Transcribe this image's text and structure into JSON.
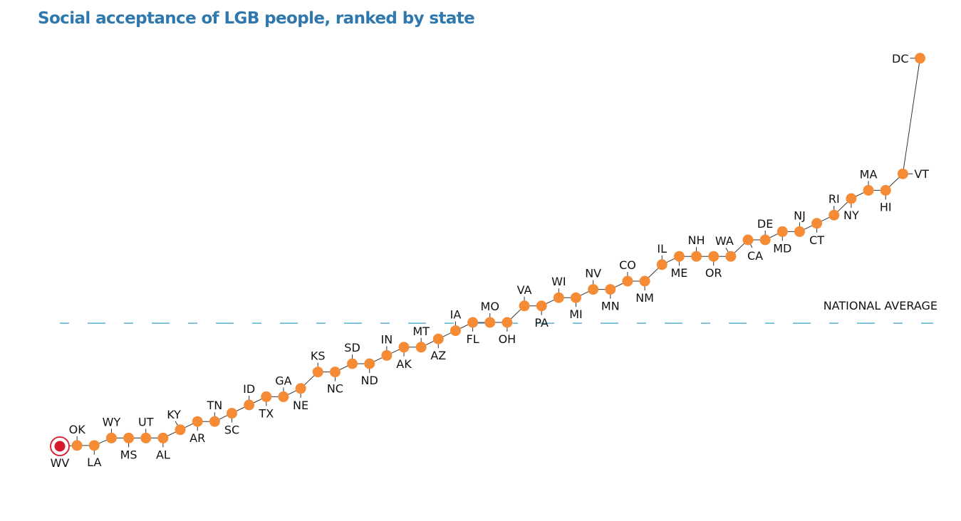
{
  "chart_data": {
    "type": "line",
    "title": "Social acceptance of LGB people, ranked by state",
    "xlabel": "",
    "ylabel": "",
    "note": "No numeric axis shown; values are relative acceptance levels estimated from vertical position (0 = lowest, WV).",
    "ylim": [
      0,
      47
    ],
    "grid": false,
    "colors": {
      "point": "#f58b35",
      "highlight": "#d7192d",
      "highlight_ring": "#d7192d",
      "line": "#333333",
      "average_line": "#5ab0d8",
      "title": "#2e78ad"
    },
    "reference_line": {
      "label": "NATIONAL AVERAGE",
      "value": 14.9
    },
    "highlight": "WV",
    "points": [
      {
        "state": "WV",
        "value": 0,
        "label_pos": "below"
      },
      {
        "state": "OK",
        "value": 0.1,
        "label_pos": "above"
      },
      {
        "state": "LA",
        "value": 0.1,
        "label_pos": "below"
      },
      {
        "state": "WY",
        "value": 1,
        "label_pos": "above"
      },
      {
        "state": "MS",
        "value": 1,
        "label_pos": "below"
      },
      {
        "state": "UT",
        "value": 1,
        "label_pos": "above"
      },
      {
        "state": "AL",
        "value": 1,
        "label_pos": "below"
      },
      {
        "state": "KY",
        "value": 2,
        "label_pos": "above-left"
      },
      {
        "state": "AR",
        "value": 3,
        "label_pos": "below"
      },
      {
        "state": "TN",
        "value": 3,
        "label_pos": "above"
      },
      {
        "state": "SC",
        "value": 4,
        "label_pos": "below"
      },
      {
        "state": "ID",
        "value": 5,
        "label_pos": "above"
      },
      {
        "state": "TX",
        "value": 6,
        "label_pos": "below"
      },
      {
        "state": "GA",
        "value": 6,
        "label_pos": "above"
      },
      {
        "state": "NE",
        "value": 7,
        "label_pos": "below"
      },
      {
        "state": "KS",
        "value": 9,
        "label_pos": "above"
      },
      {
        "state": "NC",
        "value": 9,
        "label_pos": "below"
      },
      {
        "state": "SD",
        "value": 10,
        "label_pos": "above"
      },
      {
        "state": "ND",
        "value": 10,
        "label_pos": "below"
      },
      {
        "state": "IN",
        "value": 11,
        "label_pos": "above"
      },
      {
        "state": "AK",
        "value": 12,
        "label_pos": "below"
      },
      {
        "state": "MT",
        "value": 12,
        "label_pos": "above"
      },
      {
        "state": "AZ",
        "value": 13,
        "label_pos": "below"
      },
      {
        "state": "IA",
        "value": 14,
        "label_pos": "above"
      },
      {
        "state": "FL",
        "value": 15,
        "label_pos": "below"
      },
      {
        "state": "MO",
        "value": 15,
        "label_pos": "above"
      },
      {
        "state": "OH",
        "value": 15,
        "label_pos": "below"
      },
      {
        "state": "VA",
        "value": 17,
        "label_pos": "above"
      },
      {
        "state": "PA",
        "value": 17,
        "label_pos": "below"
      },
      {
        "state": "WI",
        "value": 18,
        "label_pos": "above"
      },
      {
        "state": "MI",
        "value": 18,
        "label_pos": "below"
      },
      {
        "state": "NV",
        "value": 19,
        "label_pos": "above"
      },
      {
        "state": "MN",
        "value": 19,
        "label_pos": "below"
      },
      {
        "state": "CO",
        "value": 20,
        "label_pos": "above"
      },
      {
        "state": "NM",
        "value": 20,
        "label_pos": "below"
      },
      {
        "state": "IL",
        "value": 22,
        "label_pos": "above"
      },
      {
        "state": "ME",
        "value": 23,
        "label_pos": "below"
      },
      {
        "state": "NH",
        "value": 23,
        "label_pos": "above"
      },
      {
        "state": "OR",
        "value": 23,
        "label_pos": "below"
      },
      {
        "state": "WA",
        "value": 23,
        "label_pos": "above-left"
      },
      {
        "state": "CA",
        "value": 25,
        "label_pos": "below-right"
      },
      {
        "state": "DE",
        "value": 25,
        "label_pos": "above"
      },
      {
        "state": "MD",
        "value": 26,
        "label_pos": "below"
      },
      {
        "state": "NJ",
        "value": 26,
        "label_pos": "above"
      },
      {
        "state": "CT",
        "value": 27,
        "label_pos": "below"
      },
      {
        "state": "RI",
        "value": 28,
        "label_pos": "above"
      },
      {
        "state": "NY",
        "value": 30,
        "label_pos": "below"
      },
      {
        "state": "MA",
        "value": 31,
        "label_pos": "above"
      },
      {
        "state": "HI",
        "value": 31,
        "label_pos": "below"
      },
      {
        "state": "VT",
        "value": 33,
        "label_pos": "right"
      },
      {
        "state": "DC",
        "value": 47,
        "label_pos": "left"
      }
    ]
  }
}
